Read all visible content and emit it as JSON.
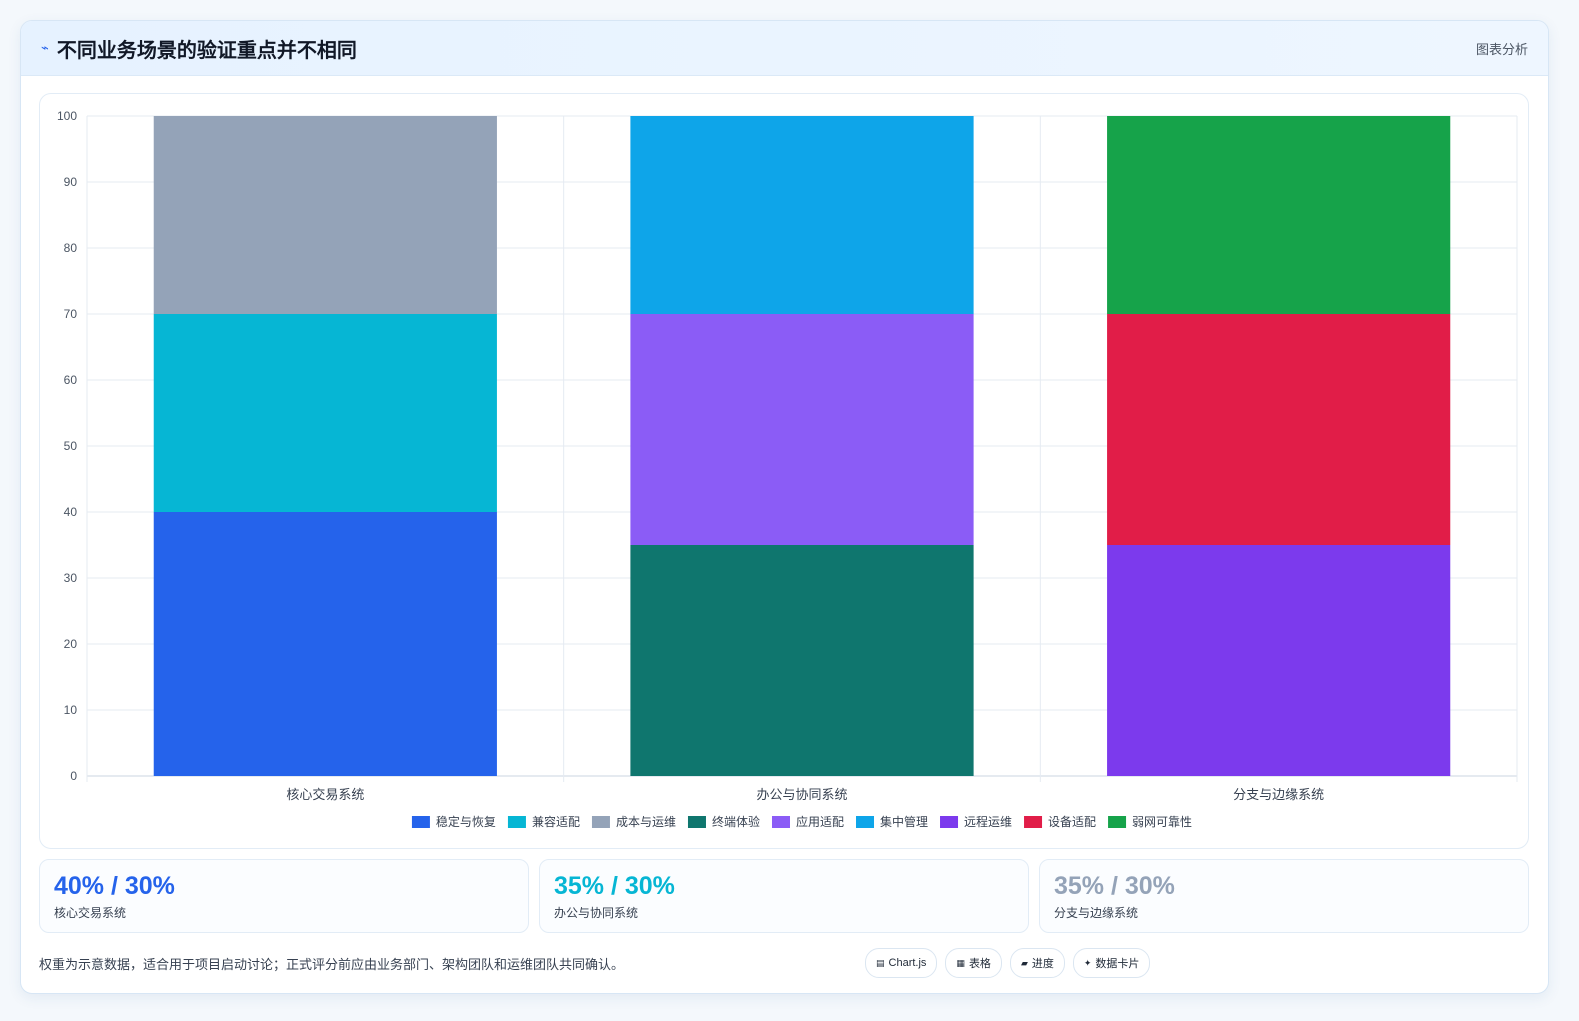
{
  "header": {
    "title": "不同业务场景的验证重点并不相同",
    "tag": "图表分析",
    "icon": "pulse-icon"
  },
  "chart_data": {
    "type": "bar",
    "stacked": true,
    "categories": [
      "核心交易系统",
      "办公与协同系统",
      "分支与边缘系统"
    ],
    "ylim": [
      0,
      100
    ],
    "yticks": [
      0,
      10,
      20,
      30,
      40,
      50,
      60,
      70,
      80,
      90,
      100
    ],
    "grid": true,
    "legend_position": "bottom",
    "series": [
      {
        "name": "稳定与恢复",
        "color": "#2563eb",
        "values": [
          40,
          0,
          0
        ]
      },
      {
        "name": "兼容适配",
        "color": "#06b6d4",
        "values": [
          30,
          0,
          0
        ]
      },
      {
        "name": "成本与运维",
        "color": "#94a3b8",
        "values": [
          30,
          0,
          0
        ]
      },
      {
        "name": "终端体验",
        "color": "#0f766e",
        "values": [
          0,
          35,
          0
        ]
      },
      {
        "name": "应用适配",
        "color": "#8b5cf6",
        "values": [
          0,
          35,
          0
        ]
      },
      {
        "name": "集中管理",
        "color": "#0ea5e9",
        "values": [
          0,
          30,
          0
        ]
      },
      {
        "name": "远程运维",
        "color": "#7c3aed",
        "values": [
          0,
          0,
          35
        ]
      },
      {
        "name": "设备适配",
        "color": "#e11d48",
        "values": [
          0,
          0,
          35
        ]
      },
      {
        "name": "弱网可靠性",
        "color": "#16a34a",
        "values": [
          0,
          0,
          30
        ]
      }
    ]
  },
  "stats": [
    {
      "value": "40% / 30%",
      "label": "核心交易系统",
      "color": "#2563eb"
    },
    {
      "value": "35% / 30%",
      "label": "办公与协同系统",
      "color": "#06b6d4"
    },
    {
      "value": "35% / 30%",
      "label": "分支与边缘系统",
      "color": "#94a3b8"
    }
  ],
  "footer": {
    "note": "权重为示意数据，适合用于项目启动讨论；正式评分前应由业务部门、架构团队和运维团队共同确认。",
    "chips": [
      {
        "icon": "▤",
        "label": "Chart.js"
      },
      {
        "icon": "▦",
        "label": "表格"
      },
      {
        "icon": "▰",
        "label": "进度"
      },
      {
        "icon": "✦",
        "label": "数据卡片"
      }
    ]
  }
}
